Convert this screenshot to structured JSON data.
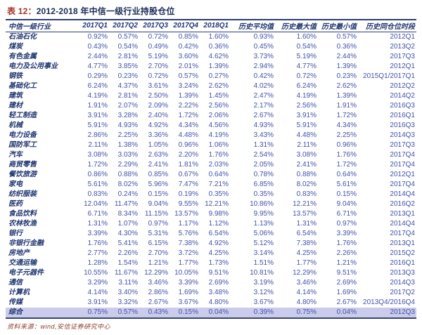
{
  "title": {
    "label": "表 12：",
    "text": "2012-2018 年中信一级行业持股仓位"
  },
  "table": {
    "columns": [
      "中信一级行业",
      "2017Q1",
      "2017Q2",
      "2017Q3",
      "2017Q4",
      "2018Q1",
      "历史平均值",
      "历史最大值",
      "历史最小值",
      "历史同仓位时段"
    ],
    "highlight_last_row": true,
    "rows": [
      [
        "石油石化",
        "0.92%",
        "0.57%",
        "0.72%",
        "0.85%",
        "1.60%",
        "0.93%",
        "1.60%",
        "0.57%",
        "2012Q1"
      ],
      [
        "煤炭",
        "0.43%",
        "0.54%",
        "0.49%",
        "0.42%",
        "0.36%",
        "0.45%",
        "0.54%",
        "0.36%",
        "2013Q2"
      ],
      [
        "有色金属",
        "2.44%",
        "2.81%",
        "5.19%",
        "3.60%",
        "4.62%",
        "3.73%",
        "5.19%",
        "2.44%",
        "2017Q3"
      ],
      [
        "电力及公用事业",
        "4.77%",
        "3.85%",
        "2.70%",
        "2.01%",
        "1.39%",
        "2.94%",
        "4.77%",
        "1.39%",
        "2012Q1"
      ],
      [
        "钢铁",
        "0.29%",
        "0.23%",
        "0.72%",
        "0.57%",
        "0.27%",
        "0.42%",
        "0.72%",
        "0.23%",
        "2015Q1/2017Q1"
      ],
      [
        "基础化工",
        "6.24%",
        "4.37%",
        "3.61%",
        "3.24%",
        "2.62%",
        "4.02%",
        "6.24%",
        "2.62%",
        "2012Q2"
      ],
      [
        "建筑",
        "4.19%",
        "2.81%",
        "2.50%",
        "1.39%",
        "1.45%",
        "2.47%",
        "4.19%",
        "1.39%",
        "2014Q2"
      ],
      [
        "建材",
        "1.91%",
        "2.07%",
        "2.09%",
        "2.22%",
        "2.56%",
        "2.17%",
        "2.56%",
        "1.91%",
        "2016Q3"
      ],
      [
        "轻工制造",
        "3.91%",
        "3.28%",
        "2.40%",
        "1.72%",
        "2.06%",
        "2.67%",
        "3.91%",
        "1.72%",
        "2016Q1"
      ],
      [
        "机械",
        "5.91%",
        "4.93%",
        "4.92%",
        "4.34%",
        "4.56%",
        "4.93%",
        "5.91%",
        "4.34%",
        "2016Q3"
      ],
      [
        "电力设备",
        "2.86%",
        "2.25%",
        "3.36%",
        "4.48%",
        "4.19%",
        "3.43%",
        "4.48%",
        "2.25%",
        "2014Q3"
      ],
      [
        "国防军工",
        "2.11%",
        "1.38%",
        "1.05%",
        "0.96%",
        "1.06%",
        "1.31%",
        "2.11%",
        "0.96%",
        "2017Q3"
      ],
      [
        "汽车",
        "3.08%",
        "3.03%",
        "2.63%",
        "2.20%",
        "1.76%",
        "2.54%",
        "3.08%",
        "1.76%",
        "2017Q4"
      ],
      [
        "商贸零售",
        "1.72%",
        "2.29%",
        "2.41%",
        "1.81%",
        "2.03%",
        "2.05%",
        "2.41%",
        "1.72%",
        "2017Q4"
      ],
      [
        "餐饮旅游",
        "0.86%",
        "0.88%",
        "0.85%",
        "0.67%",
        "0.64%",
        "0.78%",
        "0.88%",
        "0.64%",
        "2012Q1"
      ],
      [
        "家电",
        "5.61%",
        "8.02%",
        "5.96%",
        "7.47%",
        "7.21%",
        "6.85%",
        "8.02%",
        "5.61%",
        "2017Q4"
      ],
      [
        "纺织服装",
        "0.83%",
        "0.24%",
        "0.15%",
        "0.19%",
        "0.35%",
        "0.35%",
        "0.83%",
        "0.15%",
        "2014Q4"
      ],
      [
        "医药",
        "12.04%",
        "11.47%",
        "9.04%",
        "9.55%",
        "12.21%",
        "10.86%",
        "12.21%",
        "9.04%",
        "2016Q2"
      ],
      [
        "食品饮料",
        "6.71%",
        "8.34%",
        "11.15%",
        "13.57%",
        "9.98%",
        "9.95%",
        "13.57%",
        "6.71%",
        "2013Q1"
      ],
      [
        "农林牧渔",
        "1.31%",
        "1.07%",
        "0.97%",
        "1.17%",
        "1.12%",
        "1.13%",
        "1.31%",
        "0.97%",
        "2014Q4"
      ],
      [
        "银行",
        "3.39%",
        "4.30%",
        "5.31%",
        "5.76%",
        "6.54%",
        "5.06%",
        "6.54%",
        "3.39%",
        "2017Q4"
      ],
      [
        "非银行金融",
        "1.76%",
        "5.41%",
        "6.15%",
        "7.38%",
        "4.92%",
        "5.12%",
        "7.38%",
        "1.76%",
        "2013Q1"
      ],
      [
        "房地产",
        "2.77%",
        "2.26%",
        "2.70%",
        "3.72%",
        "4.25%",
        "3.14%",
        "4.25%",
        "2.26%",
        "2015Q2"
      ],
      [
        "交通运输",
        "1.28%",
        "1.54%",
        "1.21%",
        "1.77%",
        "1.73%",
        "1.51%",
        "1.77%",
        "1.21%",
        "2016Q1"
      ],
      [
        "电子元器件",
        "10.55%",
        "11.67%",
        "12.29%",
        "10.05%",
        "9.51%",
        "10.81%",
        "12.29%",
        "9.51%",
        "2013Q3"
      ],
      [
        "通信",
        "3.29%",
        "3.11%",
        "3.46%",
        "3.39%",
        "2.69%",
        "3.19%",
        "3.46%",
        "2.69%",
        "2014Q3"
      ],
      [
        "计算机",
        "4.14%",
        "3.40%",
        "2.86%",
        "1.69%",
        "3.48%",
        "3.12%",
        "4.14%",
        "1.69%",
        "2017Q2"
      ],
      [
        "传媒",
        "3.91%",
        "3.32%",
        "2.67%",
        "3.67%",
        "4.80%",
        "3.67%",
        "4.80%",
        "2.67%",
        "2013Q4/2016Q4"
      ],
      [
        "综合",
        "0.75%",
        "0.57%",
        "0.43%",
        "0.15%",
        "0.04%",
        "0.39%",
        "0.75%",
        "0.04%",
        "2012Q3"
      ]
    ]
  },
  "footer": {
    "source": "资料来源：wind,安信证券研究中心"
  },
  "colors": {
    "title_label": "#a33222",
    "title_text": "#1c2b55",
    "header_text": "#1e3470",
    "value_text": "#4253a8",
    "rule": "#2a3f6f",
    "highlight_row_bg": "#cbcbec",
    "footer_text": "#8c3b2e"
  }
}
